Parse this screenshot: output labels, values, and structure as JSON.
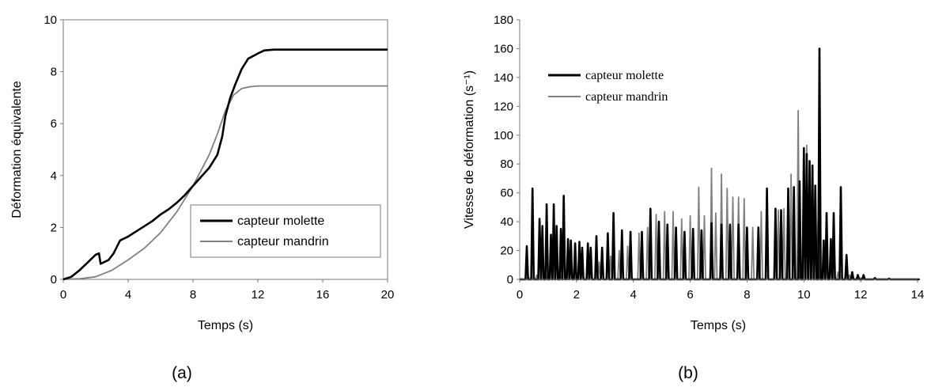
{
  "chart_data": [
    {
      "type": "line",
      "caption": "(a)",
      "xlabel": "Temps (s)",
      "ylabel": "Déformation équivalente",
      "xlim": [
        0,
        20
      ],
      "ylim": [
        0,
        10
      ],
      "xticks": [
        "0",
        "4",
        "8",
        "12",
        "16",
        "20"
      ],
      "yticks": [
        "0",
        "2",
        "4",
        "6",
        "8",
        "10"
      ],
      "grid": false,
      "legend_position": "bottom-right",
      "series": [
        {
          "name": "capteur molette",
          "color": "#000000",
          "points": [
            [
              0,
              0
            ],
            [
              0.5,
              0.1
            ],
            [
              1,
              0.35
            ],
            [
              1.5,
              0.65
            ],
            [
              2,
              0.95
            ],
            [
              2.2,
              1.0
            ],
            [
              2.3,
              0.6
            ],
            [
              2.8,
              0.75
            ],
            [
              3.1,
              1.0
            ],
            [
              3.5,
              1.5
            ],
            [
              4,
              1.65
            ],
            [
              4.5,
              1.85
            ],
            [
              5,
              2.05
            ],
            [
              5.5,
              2.25
            ],
            [
              6,
              2.5
            ],
            [
              6.5,
              2.7
            ],
            [
              7,
              2.95
            ],
            [
              7.5,
              3.25
            ],
            [
              8,
              3.6
            ],
            [
              8.5,
              3.95
            ],
            [
              9,
              4.3
            ],
            [
              9.5,
              4.8
            ],
            [
              9.8,
              5.5
            ],
            [
              10,
              6.3
            ],
            [
              10.3,
              7.0
            ],
            [
              10.6,
              7.5
            ],
            [
              11,
              8.1
            ],
            [
              11.4,
              8.5
            ],
            [
              12,
              8.7
            ],
            [
              12.4,
              8.82
            ],
            [
              13,
              8.85
            ],
            [
              15,
              8.85
            ],
            [
              20,
              8.85
            ]
          ]
        },
        {
          "name": "capteur mandrin",
          "color": "#808080",
          "points": [
            [
              0,
              0
            ],
            [
              1,
              0.02
            ],
            [
              2,
              0.1
            ],
            [
              3,
              0.35
            ],
            [
              4,
              0.75
            ],
            [
              5,
              1.2
            ],
            [
              6,
              1.8
            ],
            [
              7,
              2.6
            ],
            [
              8,
              3.6
            ],
            [
              9,
              4.8
            ],
            [
              9.5,
              5.6
            ],
            [
              10,
              6.5
            ],
            [
              10.5,
              7.1
            ],
            [
              11,
              7.35
            ],
            [
              11.5,
              7.42
            ],
            [
              12,
              7.45
            ],
            [
              20,
              7.45
            ]
          ]
        }
      ]
    },
    {
      "type": "line",
      "caption": "(b)",
      "xlabel": "Temps (s)",
      "ylabel": "Vitesse de déformation (s⁻¹)",
      "xlim": [
        0,
        14
      ],
      "ylim": [
        0,
        180
      ],
      "xticks": [
        "0",
        "2",
        "4",
        "6",
        "8",
        "10",
        "12",
        "14"
      ],
      "yticks": [
        "0",
        "20",
        "40",
        "60",
        "80",
        "100",
        "120",
        "140",
        "160",
        "180"
      ],
      "grid": false,
      "legend_position": "top-left",
      "series": [
        {
          "name": "capteur molette",
          "color": "#000000",
          "spikes": [
            [
              0.25,
              23
            ],
            [
              0.45,
              63
            ],
            [
              0.7,
              42
            ],
            [
              0.8,
              37
            ],
            [
              0.95,
              52
            ],
            [
              1.1,
              31
            ],
            [
              1.2,
              52
            ],
            [
              1.3,
              37
            ],
            [
              1.45,
              35
            ],
            [
              1.55,
              58
            ],
            [
              1.7,
              28
            ],
            [
              1.8,
              27
            ],
            [
              1.95,
              25
            ],
            [
              2.1,
              26
            ],
            [
              2.2,
              22
            ],
            [
              2.4,
              25
            ],
            [
              2.5,
              22
            ],
            [
              2.7,
              30
            ],
            [
              2.9,
              22
            ],
            [
              3.1,
              32
            ],
            [
              3.3,
              46
            ],
            [
              3.6,
              34
            ],
            [
              3.9,
              33
            ],
            [
              4.3,
              33
            ],
            [
              4.6,
              49
            ],
            [
              4.9,
              40
            ],
            [
              5.2,
              38
            ],
            [
              5.5,
              36
            ],
            [
              5.8,
              33
            ],
            [
              6.1,
              35
            ],
            [
              6.4,
              34
            ],
            [
              6.75,
              39
            ],
            [
              7.1,
              38
            ],
            [
              7.4,
              38
            ],
            [
              7.7,
              38
            ],
            [
              8.0,
              36
            ],
            [
              8.4,
              36
            ],
            [
              8.7,
              63
            ],
            [
              9.0,
              49
            ],
            [
              9.2,
              48
            ],
            [
              9.45,
              63
            ],
            [
              9.65,
              64
            ],
            [
              9.85,
              68
            ],
            [
              10.0,
              91
            ],
            [
              10.1,
              87
            ],
            [
              10.2,
              82
            ],
            [
              10.3,
              79
            ],
            [
              10.4,
              65
            ],
            [
              10.55,
              160
            ],
            [
              10.7,
              27
            ],
            [
              10.8,
              46
            ],
            [
              10.95,
              28
            ],
            [
              11.05,
              46
            ],
            [
              11.3,
              64
            ],
            [
              11.5,
              17
            ],
            [
              11.7,
              5
            ],
            [
              11.9,
              3
            ],
            [
              12.1,
              3
            ],
            [
              12.5,
              1
            ],
            [
              13,
              0.5
            ],
            [
              14,
              0
            ]
          ]
        },
        {
          "name": "capteur mandrin",
          "color": "#808080",
          "spikes": [
            [
              0.3,
              2
            ],
            [
              0.6,
              3
            ],
            [
              1.0,
              4
            ],
            [
              1.4,
              5
            ],
            [
              1.8,
              8
            ],
            [
              2.2,
              9
            ],
            [
              2.5,
              10
            ],
            [
              2.8,
              12
            ],
            [
              3.2,
              16
            ],
            [
              3.5,
              20
            ],
            [
              3.8,
              23
            ],
            [
              4.2,
              32
            ],
            [
              4.5,
              36
            ],
            [
              4.8,
              45
            ],
            [
              5.1,
              47
            ],
            [
              5.4,
              47
            ],
            [
              5.7,
              42
            ],
            [
              6.0,
              44
            ],
            [
              6.3,
              64
            ],
            [
              6.5,
              44
            ],
            [
              6.75,
              77
            ],
            [
              6.9,
              46
            ],
            [
              7.1,
              73
            ],
            [
              7.3,
              63
            ],
            [
              7.5,
              57
            ],
            [
              7.7,
              57
            ],
            [
              7.9,
              56
            ],
            [
              8.2,
              36
            ],
            [
              8.5,
              47
            ],
            [
              8.7,
              44
            ],
            [
              9.1,
              48
            ],
            [
              9.3,
              49
            ],
            [
              9.55,
              73
            ],
            [
              9.8,
              117
            ],
            [
              10.1,
              93
            ],
            [
              10.3,
              70
            ],
            [
              10.5,
              42
            ],
            [
              10.8,
              15
            ],
            [
              11.2,
              5
            ],
            [
              11.6,
              3
            ],
            [
              12,
              1
            ],
            [
              12.5,
              0.5
            ],
            [
              14,
              0
            ]
          ]
        }
      ]
    }
  ]
}
